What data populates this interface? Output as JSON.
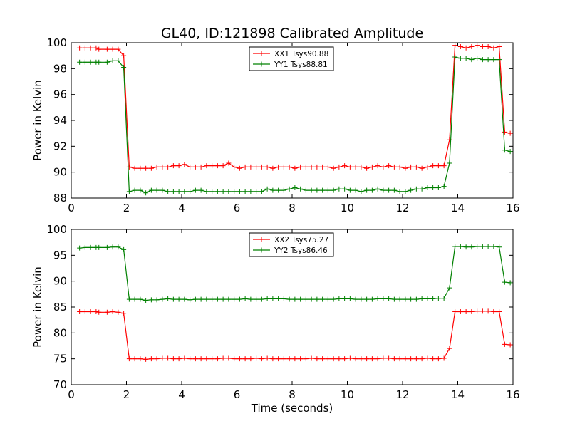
{
  "title": "GL40, ID:121898 Calibrated Amplitude",
  "xlabel": "Time (seconds)",
  "chart_data": [
    {
      "type": "line",
      "title": "GL40, ID:121898 Calibrated Amplitude",
      "xlabel": "",
      "ylabel": "Power in Kelvin",
      "xlim": [
        0,
        16
      ],
      "ylim": [
        88,
        100
      ],
      "xticks": [
        "0",
        "2",
        "4",
        "6",
        "8",
        "10",
        "12",
        "14",
        "16"
      ],
      "yticks": [
        "88",
        "90",
        "92",
        "94",
        "96",
        "98",
        "100"
      ],
      "grid": false,
      "legend_position": "top-center",
      "series": [
        {
          "name": "XX1 Tsys90.88",
          "color": "#ff0000",
          "x": [
            0.3,
            0.5,
            0.7,
            0.9,
            1.0,
            1.3,
            1.5,
            1.7,
            1.9,
            2.1,
            2.3,
            2.5,
            2.7,
            2.9,
            3.1,
            3.3,
            3.5,
            3.7,
            3.9,
            4.1,
            4.3,
            4.5,
            4.7,
            4.9,
            5.1,
            5.3,
            5.5,
            5.7,
            5.9,
            6.1,
            6.3,
            6.5,
            6.7,
            6.9,
            7.1,
            7.3,
            7.5,
            7.7,
            7.9,
            8.1,
            8.3,
            8.5,
            8.7,
            8.9,
            9.1,
            9.3,
            9.5,
            9.7,
            9.9,
            10.1,
            10.3,
            10.5,
            10.7,
            10.9,
            11.1,
            11.3,
            11.5,
            11.7,
            11.9,
            12.1,
            12.3,
            12.5,
            12.7,
            12.9,
            13.1,
            13.3,
            13.5,
            13.7,
            13.9,
            14.1,
            14.3,
            14.5,
            14.7,
            14.9,
            15.1,
            15.3,
            15.5,
            15.7,
            15.9
          ],
          "values": [
            99.6,
            99.6,
            99.6,
            99.6,
            99.5,
            99.5,
            99.5,
            99.5,
            99.0,
            90.4,
            90.3,
            90.3,
            90.3,
            90.3,
            90.4,
            90.4,
            90.4,
            90.5,
            90.5,
            90.6,
            90.4,
            90.4,
            90.4,
            90.5,
            90.5,
            90.5,
            90.5,
            90.7,
            90.4,
            90.3,
            90.4,
            90.4,
            90.4,
            90.4,
            90.4,
            90.3,
            90.4,
            90.4,
            90.4,
            90.3,
            90.4,
            90.4,
            90.4,
            90.4,
            90.4,
            90.4,
            90.3,
            90.4,
            90.5,
            90.4,
            90.4,
            90.4,
            90.3,
            90.4,
            90.5,
            90.4,
            90.5,
            90.4,
            90.4,
            90.3,
            90.4,
            90.4,
            90.3,
            90.4,
            90.5,
            90.5,
            90.5,
            92.5,
            99.8,
            99.7,
            99.6,
            99.7,
            99.8,
            99.7,
            99.7,
            99.6,
            99.7,
            93.1,
            93.0
          ]
        },
        {
          "name": "YY1 Tsys88.81",
          "color": "#008000",
          "x": [
            0.3,
            0.5,
            0.7,
            0.9,
            1.0,
            1.3,
            1.5,
            1.7,
            1.9,
            2.1,
            2.3,
            2.5,
            2.7,
            2.9,
            3.1,
            3.3,
            3.5,
            3.7,
            3.9,
            4.1,
            4.3,
            4.5,
            4.7,
            4.9,
            5.1,
            5.3,
            5.5,
            5.7,
            5.9,
            6.1,
            6.3,
            6.5,
            6.7,
            6.9,
            7.1,
            7.3,
            7.5,
            7.7,
            7.9,
            8.1,
            8.3,
            8.5,
            8.7,
            8.9,
            9.1,
            9.3,
            9.5,
            9.7,
            9.9,
            10.1,
            10.3,
            10.5,
            10.7,
            10.9,
            11.1,
            11.3,
            11.5,
            11.7,
            11.9,
            12.1,
            12.3,
            12.5,
            12.7,
            12.9,
            13.1,
            13.3,
            13.5,
            13.7,
            13.9,
            14.1,
            14.3,
            14.5,
            14.7,
            14.9,
            15.1,
            15.3,
            15.5,
            15.7,
            15.9
          ],
          "values": [
            98.5,
            98.5,
            98.5,
            98.5,
            98.5,
            98.5,
            98.6,
            98.6,
            98.1,
            88.5,
            88.6,
            88.6,
            88.4,
            88.6,
            88.6,
            88.6,
            88.5,
            88.5,
            88.5,
            88.5,
            88.5,
            88.6,
            88.6,
            88.5,
            88.5,
            88.5,
            88.5,
            88.5,
            88.5,
            88.5,
            88.5,
            88.5,
            88.5,
            88.5,
            88.7,
            88.6,
            88.6,
            88.6,
            88.7,
            88.8,
            88.7,
            88.6,
            88.6,
            88.6,
            88.6,
            88.6,
            88.6,
            88.7,
            88.7,
            88.6,
            88.6,
            88.5,
            88.6,
            88.6,
            88.7,
            88.6,
            88.6,
            88.6,
            88.5,
            88.5,
            88.6,
            88.7,
            88.7,
            88.8,
            88.8,
            88.8,
            88.9,
            90.7,
            98.9,
            98.8,
            98.8,
            98.7,
            98.8,
            98.7,
            98.7,
            98.7,
            98.7,
            91.7,
            91.6
          ]
        }
      ]
    },
    {
      "type": "line",
      "title": "",
      "xlabel": "Time (seconds)",
      "ylabel": "Power in Kelvin",
      "xlim": [
        0,
        16
      ],
      "ylim": [
        70,
        100
      ],
      "xticks": [
        "0",
        "2",
        "4",
        "6",
        "8",
        "10",
        "12",
        "14",
        "16"
      ],
      "yticks": [
        "70",
        "75",
        "80",
        "85",
        "90",
        "95",
        "100"
      ],
      "grid": false,
      "legend_position": "top-center",
      "series": [
        {
          "name": "XX2 Tsys75.27",
          "color": "#ff0000",
          "x": [
            0.3,
            0.5,
            0.7,
            0.9,
            1.0,
            1.3,
            1.5,
            1.7,
            1.9,
            2.1,
            2.3,
            2.5,
            2.7,
            2.9,
            3.1,
            3.3,
            3.5,
            3.7,
            3.9,
            4.1,
            4.3,
            4.5,
            4.7,
            4.9,
            5.1,
            5.3,
            5.5,
            5.7,
            5.9,
            6.1,
            6.3,
            6.5,
            6.7,
            6.9,
            7.1,
            7.3,
            7.5,
            7.7,
            7.9,
            8.1,
            8.3,
            8.5,
            8.7,
            8.9,
            9.1,
            9.3,
            9.5,
            9.7,
            9.9,
            10.1,
            10.3,
            10.5,
            10.7,
            10.9,
            11.1,
            11.3,
            11.5,
            11.7,
            11.9,
            12.1,
            12.3,
            12.5,
            12.7,
            12.9,
            13.1,
            13.3,
            13.5,
            13.7,
            13.9,
            14.1,
            14.3,
            14.5,
            14.7,
            14.9,
            15.1,
            15.3,
            15.5,
            15.7,
            15.9
          ],
          "values": [
            84.1,
            84.1,
            84.1,
            84.1,
            84.0,
            84.0,
            84.1,
            84.0,
            83.8,
            75.0,
            75.0,
            75.0,
            74.9,
            75.0,
            75.0,
            75.1,
            75.1,
            75.0,
            75.0,
            75.1,
            75.0,
            75.0,
            75.0,
            75.0,
            75.0,
            75.0,
            75.1,
            75.1,
            75.0,
            75.0,
            75.0,
            75.0,
            75.1,
            75.0,
            75.1,
            75.0,
            75.0,
            75.0,
            75.0,
            75.0,
            75.0,
            75.0,
            75.1,
            75.0,
            75.0,
            75.0,
            75.0,
            75.0,
            75.0,
            75.1,
            75.0,
            75.0,
            75.0,
            75.0,
            75.0,
            75.1,
            75.1,
            75.0,
            75.0,
            75.0,
            75.0,
            75.0,
            75.0,
            75.1,
            75.0,
            75.0,
            75.1,
            77.0,
            84.1,
            84.1,
            84.1,
            84.1,
            84.2,
            84.2,
            84.2,
            84.1,
            84.1,
            77.8,
            77.7
          ]
        },
        {
          "name": "YY2 Tsys86.46",
          "color": "#008000",
          "x": [
            0.3,
            0.5,
            0.7,
            0.9,
            1.0,
            1.3,
            1.5,
            1.7,
            1.9,
            2.1,
            2.3,
            2.5,
            2.7,
            2.9,
            3.1,
            3.3,
            3.5,
            3.7,
            3.9,
            4.1,
            4.3,
            4.5,
            4.7,
            4.9,
            5.1,
            5.3,
            5.5,
            5.7,
            5.9,
            6.1,
            6.3,
            6.5,
            6.7,
            6.9,
            7.1,
            7.3,
            7.5,
            7.7,
            7.9,
            8.1,
            8.3,
            8.5,
            8.7,
            8.9,
            9.1,
            9.3,
            9.5,
            9.7,
            9.9,
            10.1,
            10.3,
            10.5,
            10.7,
            10.9,
            11.1,
            11.3,
            11.5,
            11.7,
            11.9,
            12.1,
            12.3,
            12.5,
            12.7,
            12.9,
            13.1,
            13.3,
            13.5,
            13.7,
            13.9,
            14.1,
            14.3,
            14.5,
            14.7,
            14.9,
            15.1,
            15.3,
            15.5,
            15.7,
            15.9
          ],
          "values": [
            96.4,
            96.5,
            96.5,
            96.5,
            96.5,
            96.5,
            96.6,
            96.6,
            96.1,
            86.5,
            86.5,
            86.5,
            86.3,
            86.4,
            86.4,
            86.5,
            86.6,
            86.5,
            86.5,
            86.5,
            86.4,
            86.5,
            86.5,
            86.5,
            86.5,
            86.5,
            86.5,
            86.5,
            86.5,
            86.5,
            86.6,
            86.5,
            86.5,
            86.5,
            86.6,
            86.6,
            86.6,
            86.6,
            86.5,
            86.5,
            86.5,
            86.5,
            86.5,
            86.5,
            86.5,
            86.5,
            86.5,
            86.6,
            86.6,
            86.6,
            86.5,
            86.5,
            86.5,
            86.5,
            86.6,
            86.6,
            86.6,
            86.5,
            86.5,
            86.5,
            86.5,
            86.5,
            86.6,
            86.6,
            86.6,
            86.7,
            86.7,
            88.7,
            96.7,
            96.7,
            96.6,
            96.6,
            96.7,
            96.7,
            96.7,
            96.7,
            96.6,
            89.8,
            89.7
          ]
        }
      ]
    }
  ]
}
